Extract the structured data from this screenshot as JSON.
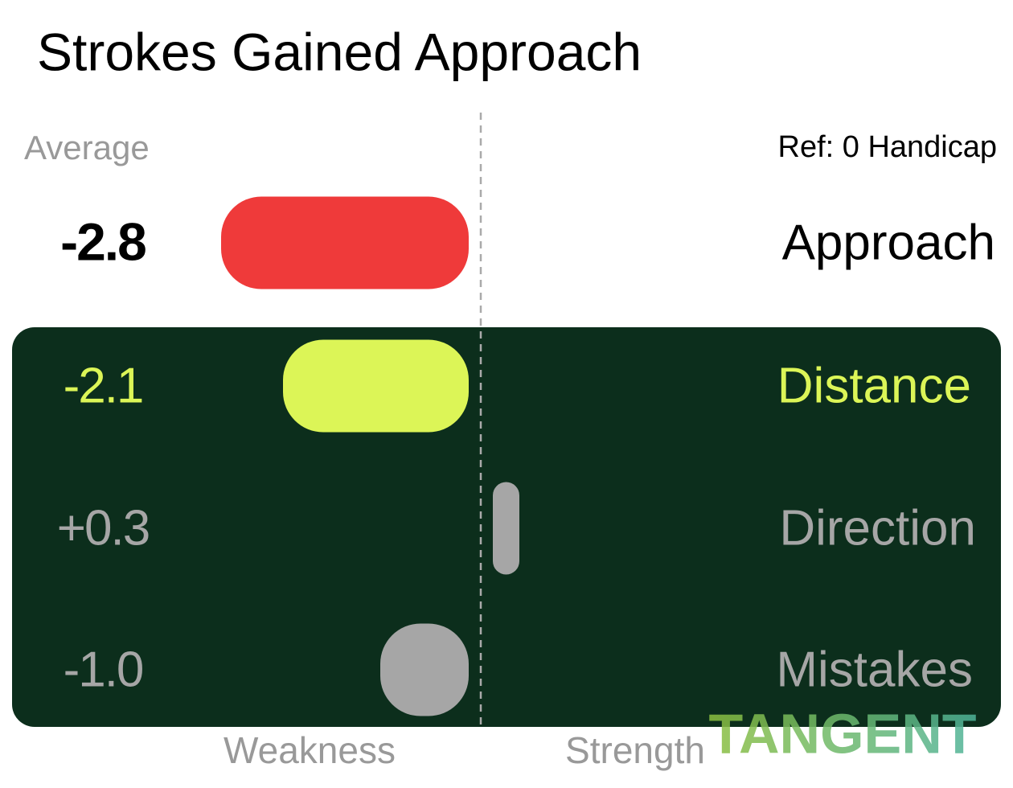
{
  "chart_data": {
    "type": "diverging-bar",
    "title": "Strokes Gained Approach",
    "subtitle": "Average",
    "reference": "Ref: 0 Handicap",
    "categories": [
      "Approach",
      "Distance",
      "Direction",
      "Mistakes"
    ],
    "values": [
      -2.8,
      -2.1,
      0.3,
      -1.0
    ],
    "value_labels": [
      "-2.8",
      "-2.1",
      "+0.3",
      "-1.0"
    ],
    "colors": [
      "#ef3a3a",
      "#dcf557",
      "#a6a6a6",
      "#a6a6a6"
    ],
    "x_labels": [
      "Weakness",
      "Strength"
    ],
    "watermark": "TANGENT"
  }
}
